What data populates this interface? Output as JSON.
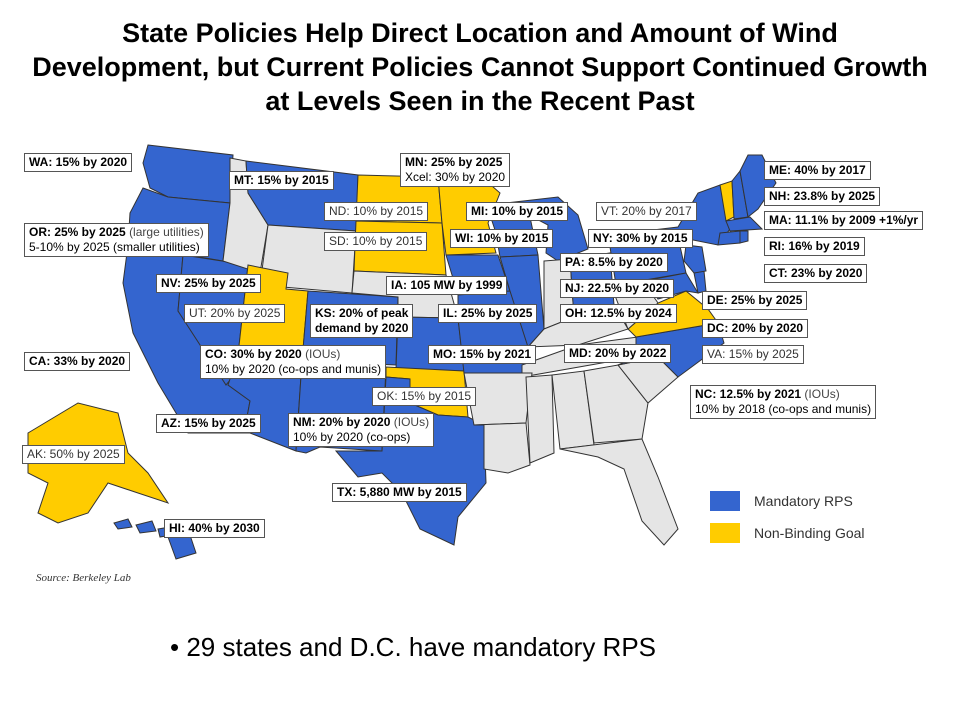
{
  "title": "State Policies Help Direct Location and Amount of Wind Development, but Current Policies Cannot Support Continued Growth at Levels Seen in the Recent Past",
  "colors": {
    "mandatory": "#3465CF",
    "goal": "#FFCC00",
    "none": "#E5E5E5",
    "border": "#333333"
  },
  "labels": {
    "wa": "WA: 15% by 2020",
    "mt": "MT: 15% by 2015",
    "mn": "MN: 25% by 2025",
    "mn_sub": "Xcel: 30% by 2020",
    "mi": "MI: 10% by 2015",
    "nd": "ND: 10% by 2015",
    "sd": "SD: 10% by 2015",
    "wi": "WI: 10% by 2015",
    "or": "OR: 25% by 2025",
    "or_note": "(large utilities)",
    "or_sub": "5-10% by 2025 (smaller utilities)",
    "nv": "NV: 25% by 2025",
    "ut": "UT: 20% by 2025",
    "ks": "KS: 20% of peak",
    "ks_sub": "demand by 2020",
    "il": "IL: 25% by 2025",
    "ia": "IA: 105 MW by 1999",
    "mo": "MO: 15% by 2021",
    "co": "CO: 30% by 2020",
    "co_note": "(IOUs)",
    "co_sub": "10% by 2020 (co-ops and munis)",
    "ca": "CA: 33% by 2020",
    "ok": "OK: 15% by 2015",
    "az": "AZ: 15% by 2025",
    "nm": "NM: 20% by 2020",
    "nm_note": "(IOUs)",
    "nm_sub": "10% by 2020 (co-ops)",
    "tx": "TX: 5,880 MW by 2015",
    "ak": "AK: 50% by 2025",
    "hi": "HI: 40% by 2030",
    "me": "ME: 40% by 2017",
    "nh": "NH: 23.8% by 2025",
    "ma": "MA: 11.1% by 2009 +1%/yr",
    "ri": "RI: 16% by 2019",
    "ct": "CT: 23% by 2020",
    "vt": "VT: 20% by 2017",
    "ny": "NY: 30% by 2015",
    "pa": "PA: 8.5% by 2020",
    "nj": "NJ: 22.5% by 2020",
    "oh": "OH: 12.5% by 2024",
    "md": "MD: 20% by 2022",
    "de": "DE: 25% by 2025",
    "dc": "DC: 20% by 2020",
    "va": "VA: 15% by 2025",
    "nc": "NC: 12.5% by 2021",
    "nc_note": "(IOUs)",
    "nc_sub": "10% by 2018 (co-ops and munis)"
  },
  "legend": {
    "mandatory": "Mandatory RPS",
    "goal": "Non-Binding Goal"
  },
  "source": "Source: Berkeley Lab",
  "bullet": "• 29 states and D.C. have mandatory RPS"
}
